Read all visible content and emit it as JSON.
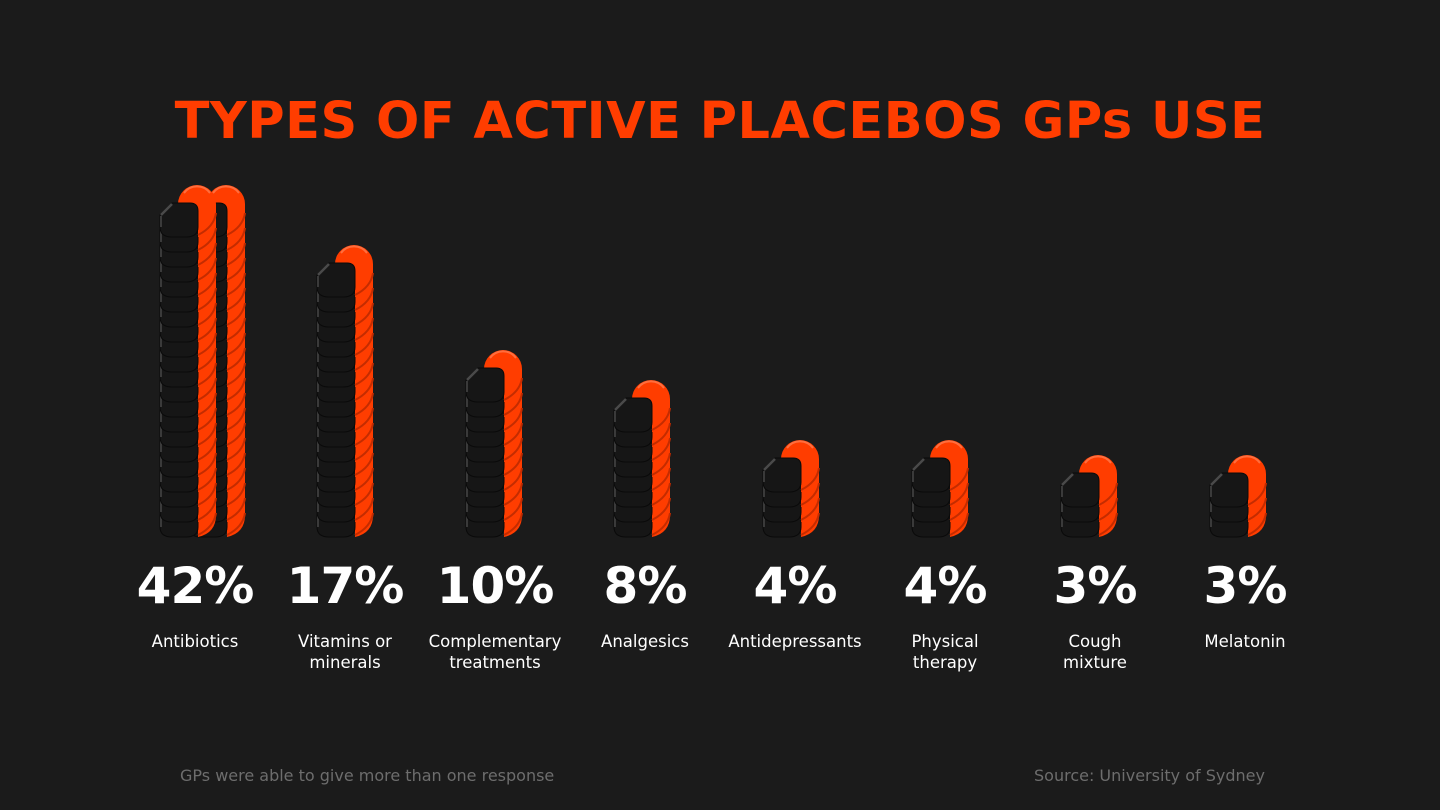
{
  "title": "TYPES OF ACTIVE PLACEBOS GPs USE",
  "footnote": "GPs were able to give more than one response",
  "source": "Source: University of Sydney",
  "colors": {
    "background": "#1b1b1b",
    "accent": "#ff3d00",
    "pill_dark": "#161616",
    "text": "#ffffff",
    "muted": "#6d6d6d"
  },
  "categories": [
    {
      "value": "42%",
      "label_line1": "Antibiotics",
      "label_line2": ""
    },
    {
      "value": "17%",
      "label_line1": "Vitamins or",
      "label_line2": "minerals"
    },
    {
      "value": "10%",
      "label_line1": "Complementary",
      "label_line2": "treatments"
    },
    {
      "value": "8%",
      "label_line1": "Analgesics",
      "label_line2": ""
    },
    {
      "value": "4%",
      "label_line1": "Antidepressants",
      "label_line2": ""
    },
    {
      "value": "4%",
      "label_line1": "Physical",
      "label_line2": "therapy"
    },
    {
      "value": "3%",
      "label_line1": "Cough",
      "label_line2": "mixture"
    },
    {
      "value": "3%",
      "label_line1": "Melatonin",
      "label_line2": ""
    }
  ],
  "chart_data": {
    "type": "bar",
    "title": "TYPES OF ACTIVE PLACEBOS GPs USE",
    "categories": [
      "Antibiotics",
      "Vitamins or minerals",
      "Complementary treatments",
      "Analgesics",
      "Antidepressants",
      "Physical therapy",
      "Cough mixture",
      "Melatonin"
    ],
    "values": [
      42,
      17,
      10,
      8,
      4,
      4,
      3,
      3
    ],
    "unit": "%",
    "xlabel": "",
    "ylabel": "",
    "grid": false,
    "legend": null,
    "style": "pictogram: stacked capsule pills, 1 pill = 1%, 42% shown as two columns of 21",
    "annotations": [
      "GPs were able to give more than one response",
      "Source: University of Sydney"
    ]
  }
}
